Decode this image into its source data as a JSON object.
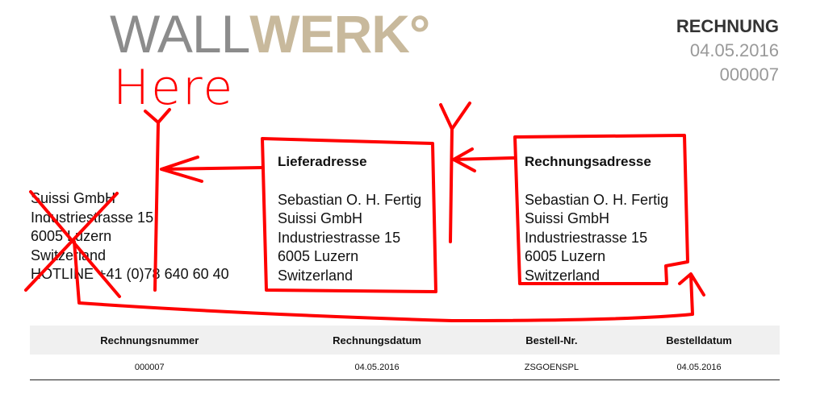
{
  "logo": {
    "part1": "WALL",
    "part2": "WERK°"
  },
  "document": {
    "title": "RECHNUNG",
    "date": "04.05.2016",
    "number": "000007"
  },
  "sender": {
    "lines": [
      "Suissi GmbH",
      "Industriestrasse 15",
      "6005 Luzern",
      "Switzerland",
      "HOTLINE +41 (0)78 640 60 40"
    ]
  },
  "delivery": {
    "heading": "Lieferadresse",
    "lines": [
      "Sebastian O. H. Fertig",
      "Suissi GmbH",
      "Industriestrasse 15",
      "6005 Luzern",
      "Switzerland"
    ]
  },
  "billing": {
    "heading": "Rechnungsadresse",
    "lines": [
      "Sebastian O. H. Fertig",
      "Suissi GmbH",
      "Industriestrasse 15",
      "6005 Luzern",
      "Switzerland"
    ]
  },
  "table": {
    "headers": [
      "Rechnungsnummer",
      "Rechnungsdatum",
      "Bestell-Nr.",
      "Bestelldatum"
    ],
    "rows": [
      [
        "000007",
        "04.05.2016",
        "ZSGOENSPL",
        "04.05.2016"
      ]
    ]
  },
  "annotation": {
    "text": "Here",
    "color": "#ff0000"
  }
}
